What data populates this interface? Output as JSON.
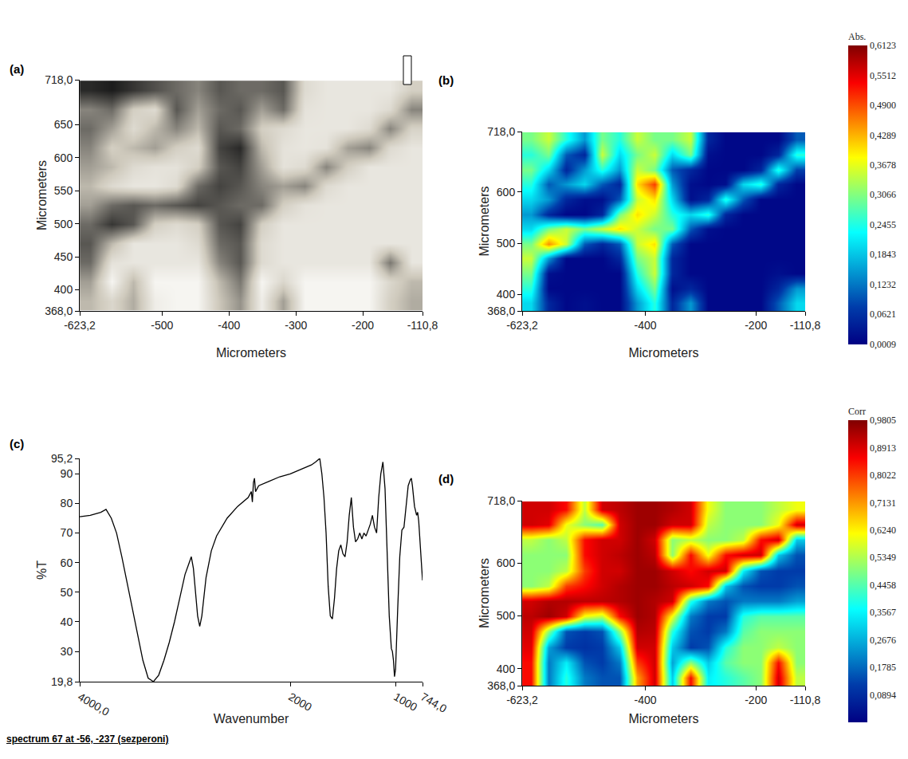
{
  "chart_data": [
    {
      "type": "heatmap",
      "title": "(a)",
      "color": "gray",
      "xlabel": "Micrometers",
      "ylabel": "Micrometers",
      "xlim": [
        -623.2,
        -110.8
      ],
      "ylim": [
        368.0,
        718.0
      ],
      "xticks": [
        {
          "value": -623.2,
          "label": "-623,2"
        },
        -500,
        -400,
        -300,
        -200,
        {
          "value": -110.8,
          "label": "-110,8"
        }
      ],
      "yticks": [
        {
          "value": 368.0,
          "label": "368,0"
        },
        400,
        450,
        500,
        550,
        600,
        650,
        {
          "value": 718.0,
          "label": "718,0"
        }
      ],
      "x": [
        -607,
        -575,
        -543,
        -511,
        -479,
        -447,
        -415,
        -383,
        -351,
        -319,
        -287,
        -255,
        -223,
        -191,
        -159,
        -127
      ],
      "y": [
        383,
        412,
        441,
        470,
        499,
        528,
        557,
        586,
        615,
        644,
        673,
        702
      ],
      "z": [
        [
          170,
          200,
          160,
          230,
          240,
          240,
          180,
          140,
          230,
          150,
          240,
          240,
          240,
          240,
          190,
          160
        ],
        [
          150,
          240,
          170,
          240,
          240,
          240,
          170,
          120,
          240,
          200,
          240,
          240,
          240,
          240,
          200,
          170
        ],
        [
          110,
          215,
          220,
          220,
          220,
          220,
          130,
          95,
          205,
          220,
          220,
          220,
          220,
          220,
          120,
          220
        ],
        [
          95,
          170,
          220,
          220,
          220,
          205,
          110,
          95,
          205,
          220,
          220,
          220,
          220,
          220,
          220,
          220
        ],
        [
          110,
          70,
          95,
          190,
          205,
          190,
          95,
          80,
          190,
          220,
          220,
          220,
          220,
          220,
          220,
          220
        ],
        [
          150,
          110,
          95,
          110,
          95,
          80,
          95,
          110,
          110,
          190,
          215,
          220,
          220,
          220,
          220,
          220
        ],
        [
          170,
          205,
          220,
          220,
          205,
          110,
          80,
          95,
          130,
          150,
          130,
          205,
          220,
          220,
          220,
          220
        ],
        [
          150,
          170,
          205,
          215,
          215,
          190,
          95,
          80,
          150,
          215,
          205,
          130,
          190,
          220,
          220,
          220
        ],
        [
          130,
          190,
          170,
          150,
          190,
          205,
          80,
          60,
          170,
          215,
          220,
          215,
          150,
          130,
          205,
          220
        ],
        [
          110,
          150,
          205,
          170,
          130,
          170,
          95,
          110,
          190,
          205,
          220,
          220,
          220,
          205,
          130,
          195
        ],
        [
          130,
          110,
          190,
          205,
          95,
          150,
          110,
          95,
          150,
          110,
          215,
          220,
          220,
          220,
          205,
          130
        ],
        [
          60,
          50,
          70,
          90,
          110,
          130,
          95,
          110,
          110,
          95,
          205,
          220,
          220,
          220,
          220,
          190
        ]
      ]
    },
    {
      "type": "heatmap",
      "title": "(b)",
      "color": "jet",
      "xlabel": "Micrometers",
      "ylabel": "Micrometers",
      "zlabel": "Abs.",
      "xlim": [
        -623.2,
        -110.8
      ],
      "ylim": [
        368.0,
        718.0
      ],
      "xticks": [
        {
          "value": -623.2,
          "label": "-623,2"
        },
        -400,
        -200,
        {
          "value": -110.8,
          "label": "-110,8"
        }
      ],
      "yticks": [
        {
          "value": 368.0,
          "label": "368,0"
        },
        400,
        500,
        600,
        {
          "value": 718.0,
          "label": "718,0"
        }
      ],
      "zlim": [
        0,
        0.6123
      ],
      "zticks": [
        {
          "value": 0.6123,
          "label": "0,6123"
        },
        {
          "value": 0.5512,
          "label": "0,5512"
        },
        {
          "value": 0.49,
          "label": "0,4900"
        },
        {
          "value": 0.4289,
          "label": "0,4289"
        },
        {
          "value": 0.3678,
          "label": "0,3678"
        },
        {
          "value": 0.3066,
          "label": "0,3066"
        },
        {
          "value": 0.2455,
          "label": "0,2455"
        },
        {
          "value": 0.1843,
          "label": "0,1843"
        },
        {
          "value": 0.1232,
          "label": "0,1232"
        },
        {
          "value": 0.0621,
          "label": "0,0621"
        },
        {
          "value": 0.0009,
          "label": "0,0009"
        }
      ],
      "x": [
        -607,
        -575,
        -543,
        -511,
        -479,
        -447,
        -415,
        -383,
        -351,
        -319,
        -287,
        -255,
        -223,
        -191,
        -159,
        -127
      ],
      "y": [
        383,
        412,
        441,
        470,
        499,
        528,
        557,
        586,
        615,
        644,
        673,
        702
      ],
      "z": [
        [
          0.2,
          0.05,
          0.01,
          0.02,
          0.01,
          0.01,
          0.15,
          0.25,
          0.05,
          0.15,
          0.01,
          0.01,
          0.01,
          0.01,
          0.1,
          0.2
        ],
        [
          0.25,
          0.01,
          0.01,
          0.01,
          0.01,
          0.01,
          0.2,
          0.3,
          0.02,
          0.05,
          0.01,
          0.01,
          0.01,
          0.01,
          0.05,
          0.15
        ],
        [
          0.3,
          0.02,
          0.01,
          0.01,
          0.01,
          0.01,
          0.25,
          0.35,
          0.05,
          0.01,
          0.01,
          0.01,
          0.01,
          0.01,
          0.02,
          0.01
        ],
        [
          0.35,
          0.15,
          0.01,
          0.01,
          0.01,
          0.05,
          0.3,
          0.35,
          0.05,
          0.01,
          0.01,
          0.01,
          0.01,
          0.01,
          0.01,
          0.01
        ],
        [
          0.3,
          0.45,
          0.35,
          0.1,
          0.05,
          0.1,
          0.35,
          0.4,
          0.1,
          0.01,
          0.01,
          0.01,
          0.01,
          0.01,
          0.01,
          0.01
        ],
        [
          0.2,
          0.3,
          0.35,
          0.3,
          0.35,
          0.4,
          0.35,
          0.3,
          0.3,
          0.1,
          0.02,
          0.01,
          0.01,
          0.01,
          0.01,
          0.01
        ],
        [
          0.15,
          0.05,
          0.01,
          0.01,
          0.05,
          0.3,
          0.4,
          0.35,
          0.25,
          0.2,
          0.25,
          0.05,
          0.01,
          0.01,
          0.01,
          0.01
        ],
        [
          0.2,
          0.15,
          0.05,
          0.02,
          0.02,
          0.1,
          0.35,
          0.4,
          0.2,
          0.02,
          0.05,
          0.25,
          0.1,
          0.01,
          0.01,
          0.01
        ],
        [
          0.25,
          0.1,
          0.15,
          0.2,
          0.1,
          0.05,
          0.4,
          0.5,
          0.15,
          0.02,
          0.01,
          0.02,
          0.2,
          0.25,
          0.05,
          0.01
        ],
        [
          0.3,
          0.2,
          0.05,
          0.15,
          0.25,
          0.15,
          0.35,
          0.3,
          0.1,
          0.05,
          0.01,
          0.01,
          0.01,
          0.05,
          0.25,
          0.08
        ],
        [
          0.25,
          0.3,
          0.1,
          0.05,
          0.35,
          0.2,
          0.3,
          0.35,
          0.2,
          0.3,
          0.02,
          0.01,
          0.01,
          0.01,
          0.05,
          0.25
        ],
        [
          0.3,
          0.35,
          0.25,
          0.15,
          0.3,
          0.25,
          0.35,
          0.3,
          0.3,
          0.35,
          0.05,
          0.01,
          0.01,
          0.01,
          0.01,
          0.1
        ]
      ]
    },
    {
      "type": "line",
      "title": "(c)",
      "color": "#000000",
      "xlabel": "Wavenumber",
      "ylabel": "%T",
      "xlim": [
        4000.0,
        744.0
      ],
      "ylim": [
        19.8,
        95.2
      ],
      "xticks": [
        {
          "value": 4000.0,
          "label": "4000,0"
        },
        2000,
        1000,
        {
          "value": 744.0,
          "label": "744,0"
        }
      ],
      "yticks": [
        {
          "value": 19.8,
          "label": "19,8"
        },
        30,
        40,
        50,
        60,
        70,
        80,
        90,
        {
          "value": 95.2,
          "label": "95,2"
        }
      ],
      "x": [
        4000,
        3900,
        3800,
        3750,
        3700,
        3650,
        3600,
        3550,
        3500,
        3450,
        3400,
        3350,
        3300,
        3250,
        3200,
        3150,
        3100,
        3050,
        3000,
        2960,
        2940,
        2920,
        2900,
        2880,
        2860,
        2840,
        2800,
        2750,
        2700,
        2600,
        2500,
        2400,
        2370,
        2360,
        2350,
        2340,
        2330,
        2300,
        2200,
        2100,
        2000,
        1900,
        1800,
        1760,
        1740,
        1720,
        1700,
        1680,
        1660,
        1640,
        1620,
        1600,
        1580,
        1560,
        1540,
        1520,
        1500,
        1480,
        1460,
        1440,
        1420,
        1400,
        1380,
        1360,
        1340,
        1320,
        1300,
        1280,
        1260,
        1240,
        1220,
        1200,
        1180,
        1160,
        1140,
        1120,
        1100,
        1080,
        1060,
        1040,
        1030,
        1020,
        1010,
        1000,
        990,
        980,
        960,
        940,
        920,
        900,
        880,
        860,
        850,
        840,
        820,
        800,
        790,
        780,
        760,
        744
      ],
      "values": [
        75.5,
        76,
        77,
        78,
        75,
        70,
        62,
        53,
        44,
        35,
        27,
        21,
        19.8,
        22,
        27,
        33,
        40,
        48,
        56,
        60,
        62,
        58,
        50,
        42,
        38.5,
        42,
        55,
        64,
        69,
        75,
        79,
        82,
        84,
        80.5,
        87,
        88.5,
        84,
        86,
        87.5,
        89,
        90,
        91.5,
        93,
        94,
        94.5,
        95.2,
        90,
        82,
        70,
        52,
        42,
        41,
        48,
        58,
        64,
        66,
        63,
        62,
        67,
        76,
        82,
        72,
        67,
        68,
        70,
        68,
        70,
        69,
        71,
        73,
        76,
        72,
        70,
        82,
        90,
        94,
        85,
        62,
        42,
        31,
        30,
        27,
        21.5,
        24,
        32,
        44,
        62,
        71,
        72,
        80,
        86,
        88,
        88.5,
        86,
        79,
        76,
        77,
        74,
        64,
        54
      ]
    },
    {
      "type": "heatmap",
      "title": "(d)",
      "color": "jet",
      "xlabel": "Micrometers",
      "ylabel": "Micrometers",
      "zlabel": "Corr",
      "xlim": [
        -623.2,
        -110.8
      ],
      "ylim": [
        368.0,
        718.0
      ],
      "xticks": [
        {
          "value": -623.2,
          "label": "-623,2"
        },
        -400,
        -200,
        {
          "value": -110.8,
          "label": "-110,8"
        }
      ],
      "yticks": [
        {
          "value": 368.0,
          "label": "368,0"
        },
        400,
        500,
        600,
        {
          "value": 718.0,
          "label": "718,0"
        }
      ],
      "zlim": [
        0,
        0.9805
      ],
      "zticks": [
        {
          "value": 0.9805,
          "label": "0,9805"
        },
        {
          "value": 0.8913,
          "label": "0,8913"
        },
        {
          "value": 0.8022,
          "label": "0,8022"
        },
        {
          "value": 0.7131,
          "label": "0,7131"
        },
        {
          "value": 0.624,
          "label": "0,6240"
        },
        {
          "value": 0.5349,
          "label": "0,5349"
        },
        {
          "value": 0.4458,
          "label": "0,4458"
        },
        {
          "value": 0.3567,
          "label": "0,3567"
        },
        {
          "value": 0.2676,
          "label": "0,2676"
        },
        {
          "value": 0.1785,
          "label": "0,1785"
        },
        {
          "value": 0.0894,
          "label": "0,0894"
        }
      ],
      "x": [
        -607,
        -575,
        -543,
        -511,
        -479,
        -447,
        -415,
        -383,
        -351,
        -319,
        -287,
        -255,
        -223,
        -191,
        -159,
        -127
      ],
      "y": [
        383,
        412,
        441,
        470,
        499,
        528,
        557,
        586,
        615,
        644,
        673,
        702
      ],
      "z": [
        [
          0.85,
          0.2,
          0.4,
          0.2,
          0.15,
          0.15,
          0.7,
          0.9,
          0.3,
          0.85,
          0.35,
          0.4,
          0.45,
          0.5,
          0.9,
          0.55
        ],
        [
          0.85,
          0.2,
          0.35,
          0.15,
          0.12,
          0.2,
          0.8,
          0.9,
          0.25,
          0.5,
          0.3,
          0.45,
          0.5,
          0.5,
          0.85,
          0.5
        ],
        [
          0.88,
          0.25,
          0.12,
          0.1,
          0.12,
          0.3,
          0.9,
          0.9,
          0.3,
          0.12,
          0.15,
          0.4,
          0.5,
          0.5,
          0.55,
          0.5
        ],
        [
          0.9,
          0.5,
          0.15,
          0.12,
          0.15,
          0.5,
          0.93,
          0.92,
          0.4,
          0.15,
          0.12,
          0.2,
          0.45,
          0.5,
          0.5,
          0.5
        ],
        [
          0.92,
          0.95,
          0.9,
          0.6,
          0.55,
          0.85,
          0.95,
          0.93,
          0.6,
          0.2,
          0.12,
          0.12,
          0.4,
          0.45,
          0.45,
          0.45
        ],
        [
          0.9,
          0.93,
          0.93,
          0.92,
          0.92,
          0.93,
          0.95,
          0.93,
          0.9,
          0.4,
          0.2,
          0.15,
          0.2,
          0.2,
          0.2,
          0.25
        ],
        [
          0.5,
          0.55,
          0.8,
          0.85,
          0.9,
          0.93,
          0.95,
          0.95,
          0.92,
          0.9,
          0.85,
          0.3,
          0.15,
          0.12,
          0.12,
          0.15
        ],
        [
          0.5,
          0.5,
          0.55,
          0.8,
          0.9,
          0.9,
          0.95,
          0.95,
          0.9,
          0.85,
          0.9,
          0.9,
          0.35,
          0.15,
          0.12,
          0.12
        ],
        [
          0.5,
          0.5,
          0.5,
          0.85,
          0.9,
          0.92,
          0.95,
          0.92,
          0.5,
          0.85,
          0.6,
          0.85,
          0.9,
          0.9,
          0.3,
          0.15
        ],
        [
          0.55,
          0.5,
          0.55,
          0.85,
          0.9,
          0.9,
          0.95,
          0.9,
          0.5,
          0.55,
          0.5,
          0.5,
          0.55,
          0.85,
          0.9,
          0.3
        ],
        [
          0.9,
          0.88,
          0.6,
          0.5,
          0.45,
          0.9,
          0.95,
          0.95,
          0.9,
          0.9,
          0.55,
          0.5,
          0.5,
          0.5,
          0.6,
          0.9
        ],
        [
          0.9,
          0.9,
          0.85,
          0.55,
          0.9,
          0.92,
          0.95,
          0.95,
          0.93,
          0.9,
          0.6,
          0.5,
          0.5,
          0.5,
          0.55,
          0.6
        ]
      ]
    }
  ],
  "caption": "spectrum 67 at -56, -237 (sezperoni)"
}
